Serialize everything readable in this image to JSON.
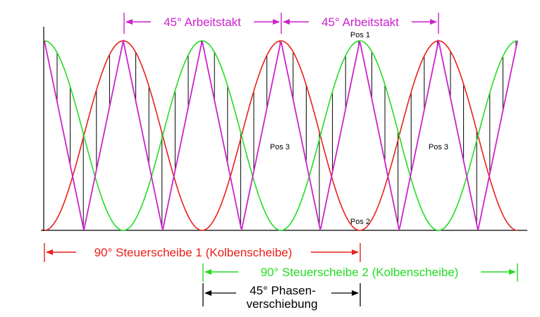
{
  "colors": {
    "red": "#e8201c",
    "green": "#22dd22",
    "magenta": "#cc22cc",
    "black": "#000000"
  },
  "labels": {
    "work_cycle": "45° Arbeitstakt",
    "pos1": "Pos 1",
    "pos2": "Pos 2",
    "pos3": "Pos 3",
    "control_disc_1": "90° Steuerscheibe 1 (Kolbenscheibe)",
    "control_disc_2": "90° Steuerscheibe 2 (Kolbenscheibe)",
    "phase_line1": "45° Phasen-",
    "phase_line2": "verschiebung"
  }
}
